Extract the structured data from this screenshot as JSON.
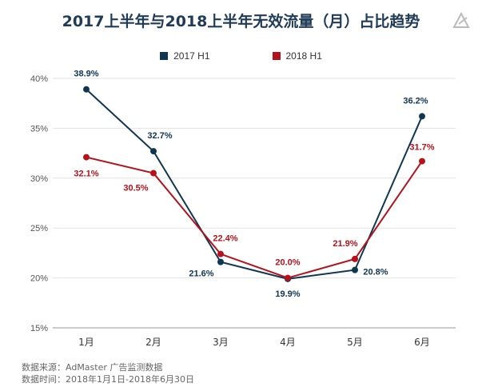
{
  "chart_data": {
    "type": "line",
    "title": "2017上半年与2018上半年无效流量（月）占比趋势",
    "categories": [
      "1月",
      "2月",
      "3月",
      "4月",
      "5月",
      "6月"
    ],
    "series": [
      {
        "name": "2017 H1",
        "color": "#0f3652",
        "values": [
          38.9,
          32.7,
          21.6,
          19.9,
          20.8,
          36.2
        ],
        "labels": [
          "38.9%",
          "32.7%",
          "21.6%",
          "19.9%",
          "20.8%",
          "36.2%"
        ]
      },
      {
        "name": "2018 H1",
        "color": "#b5121b",
        "values": [
          32.1,
          30.5,
          22.4,
          20.0,
          21.9,
          31.7
        ],
        "labels": [
          "32.1%",
          "30.5%",
          "22.4%",
          "20.0%",
          "21.9%",
          "31.7%"
        ]
      }
    ],
    "ylim": [
      15,
      40
    ],
    "yticks": [
      15,
      20,
      25,
      30,
      35,
      40
    ],
    "ytick_labels": [
      "15%",
      "20%",
      "25%",
      "30%",
      "35%",
      "40%"
    ],
    "grid": true,
    "legend_position": "top-center"
  },
  "footer": {
    "source": "数据来源：AdMaster 广告监测数据",
    "period": "数据时间：2018年1月1日-2018年6月30日"
  }
}
